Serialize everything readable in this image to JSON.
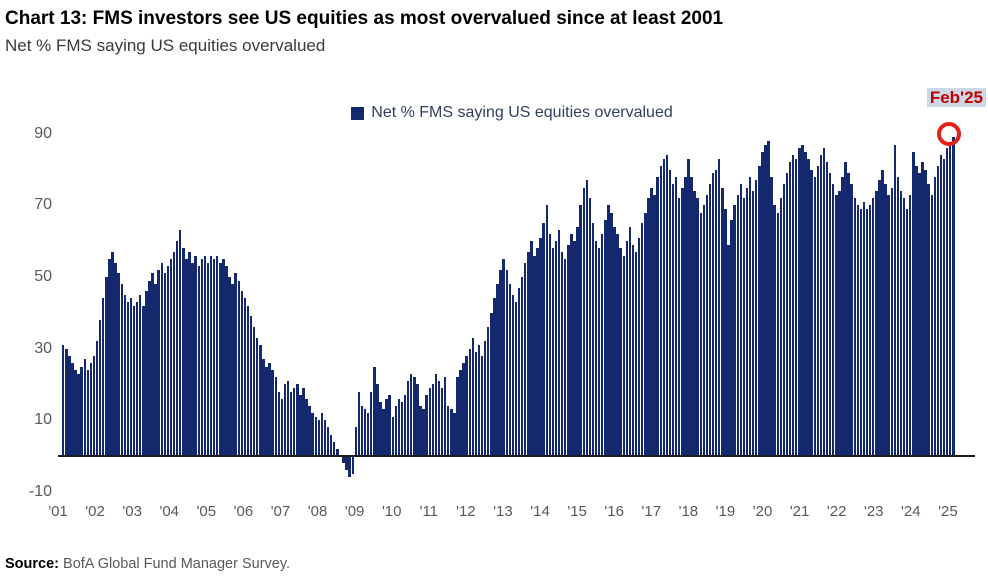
{
  "page": {
    "title": "Chart 13: FMS investors see US equities as most overvalued since at least 2001",
    "subtitle": "Net % FMS saying US equities overvalued"
  },
  "legend": {
    "label": "Net % FMS saying US equities overvalued"
  },
  "annotation": {
    "label": "Feb'25"
  },
  "source": {
    "prefix": "Source:",
    "text": " BofA Global Fund Manager Survey."
  },
  "colors": {
    "bar": "#14286e",
    "annotation_red": "#c00000",
    "circle_red": "#e32119",
    "annotation_highlight": "#ccd8e5",
    "axis_text": "#595959",
    "baseline": "#1a1a1a"
  },
  "chart_data": {
    "type": "bar",
    "title": "Chart 13: FMS investors see US equities as most overvalued since at least 2001",
    "subtitle": "Net % FMS saying US equities overvalued",
    "legend_position": "top-center",
    "grid": false,
    "x_start": "2001-01",
    "x_end": "2025-02",
    "x_tick_labels": [
      "'01",
      "'02",
      "'03",
      "'04",
      "'05",
      "'06",
      "'07",
      "'08",
      "'09",
      "'10",
      "'11",
      "'12",
      "'13",
      "'14",
      "'15",
      "'16",
      "'17",
      "'18",
      "'19",
      "'20",
      "'21",
      "'22",
      "'23",
      "'24",
      "'25"
    ],
    "y_ticks": [
      90,
      70,
      50,
      30,
      10,
      -10
    ],
    "ylim": [
      -10,
      94
    ],
    "highlight": {
      "label": "Feb'25",
      "value": 89
    },
    "series": [
      {
        "name": "Net % FMS saying US equities overvalued",
        "frequency": "monthly",
        "values": [
          31,
          30,
          28,
          26,
          24,
          23,
          25,
          27,
          24,
          26,
          28,
          32,
          38,
          44,
          50,
          55,
          57,
          54,
          51,
          48,
          45,
          43,
          44,
          42,
          43,
          45,
          42,
          46,
          49,
          51,
          48,
          52,
          54,
          51,
          53,
          55,
          57,
          60,
          63,
          58,
          55,
          57,
          54,
          56,
          53,
          55,
          56,
          54,
          56,
          55,
          56,
          54,
          55,
          53,
          50,
          48,
          51,
          49,
          46,
          44,
          42,
          39,
          36,
          33,
          31,
          27,
          25,
          26,
          24,
          22,
          18,
          16,
          20,
          21,
          18,
          19,
          20,
          17,
          19,
          16,
          14,
          12,
          11,
          10,
          12,
          10,
          8,
          6,
          4,
          2,
          0,
          -2,
          -4,
          -6,
          -5,
          8,
          18,
          14,
          13,
          12,
          18,
          25,
          20,
          15,
          13,
          16,
          17,
          11,
          14,
          16,
          15,
          17,
          21,
          23,
          22,
          20,
          14,
          13,
          17,
          19,
          20,
          23,
          21,
          19,
          22,
          14,
          13,
          12,
          22,
          24,
          26,
          28,
          30,
          33,
          29,
          31,
          28,
          32,
          36,
          40,
          44,
          48,
          52,
          55,
          52,
          48,
          45,
          43,
          47,
          50,
          54,
          57,
          60,
          56,
          58,
          61,
          65,
          70,
          62,
          58,
          60,
          63,
          57,
          55,
          59,
          62,
          60,
          64,
          70,
          75,
          77,
          72,
          65,
          60,
          58,
          62,
          66,
          70,
          68,
          64,
          62,
          58,
          56,
          60,
          64,
          59,
          57,
          61,
          65,
          68,
          72,
          75,
          73,
          78,
          81,
          83,
          84,
          80,
          76,
          78,
          72,
          75,
          78,
          83,
          78,
          74,
          72,
          68,
          70,
          73,
          76,
          79,
          80,
          83,
          75,
          69,
          59,
          66,
          70,
          73,
          76,
          72,
          75,
          78,
          74,
          77,
          81,
          85,
          87,
          88,
          78,
          70,
          68,
          72,
          76,
          79,
          82,
          84,
          83,
          86,
          87,
          85,
          83,
          80,
          78,
          81,
          84,
          86,
          82,
          79,
          76,
          73,
          74,
          78,
          82,
          79,
          76,
          72,
          70,
          69,
          71,
          69,
          70,
          72,
          74,
          77,
          80,
          76,
          73,
          75,
          87,
          78,
          74,
          72,
          69,
          73,
          85,
          81,
          79,
          82,
          80,
          76,
          73,
          78,
          81,
          84,
          83,
          86,
          87,
          89
        ]
      }
    ]
  }
}
